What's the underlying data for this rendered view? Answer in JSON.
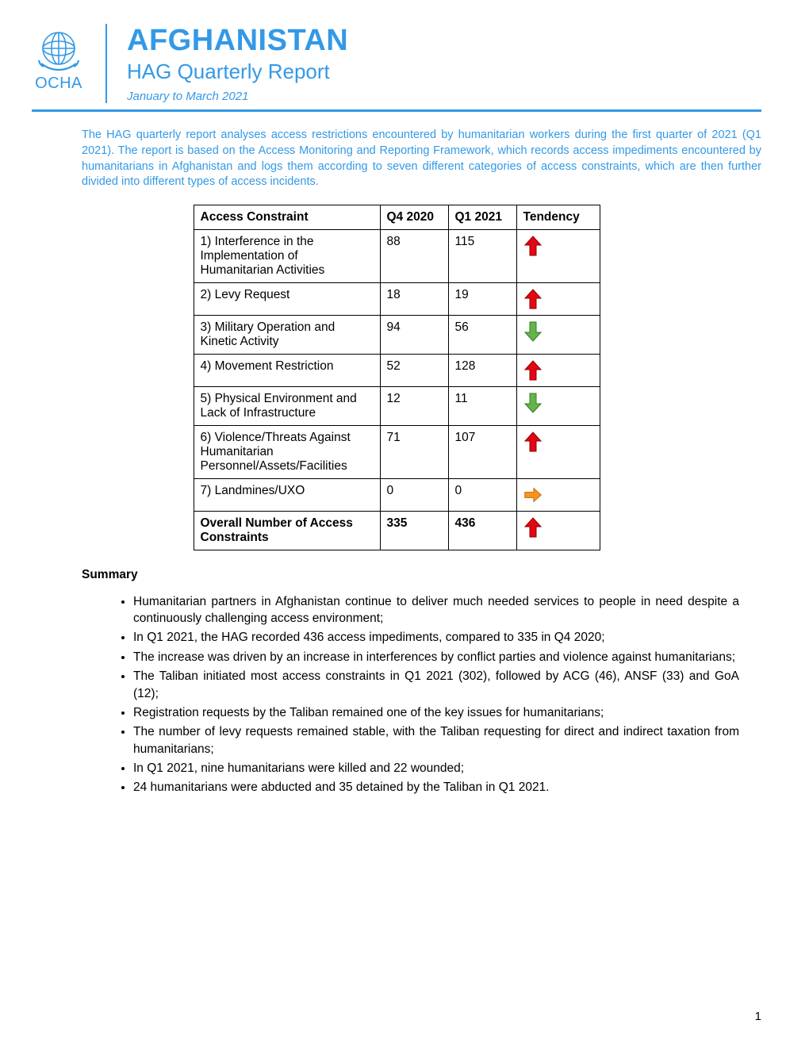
{
  "colors": {
    "primary": "#3399e6",
    "arrow_up": "#e30613",
    "arrow_up_border": "#8b0000",
    "arrow_down": "#66b34d",
    "arrow_down_border": "#2e7d1f",
    "arrow_side": "#f7931e",
    "arrow_side_border": "#c1620a",
    "text": "#000000",
    "bg": "#ffffff",
    "table_border": "#000000"
  },
  "header": {
    "org_label": "OCHA",
    "title": "AFGHANISTAN",
    "subtitle": "HAG Quarterly Report",
    "date_range": "January to March 2021"
  },
  "intro": "The HAG quarterly report analyses access restrictions encountered by humanitarian workers during the first quarter of 2021 (Q1 2021). The report is based on the Access Monitoring and Reporting Framework, which records access impediments encountered by humanitarians in Afghanistan and logs them according to seven different categories of access constraints, which are then further divided into different types of access incidents.",
  "table": {
    "columns": [
      "Access Constraint",
      "Q4 2020",
      "Q1 2021",
      "Tendency"
    ],
    "rows": [
      {
        "label": "1) Interference in the Implementation of Humanitarian Activities",
        "q4": "88",
        "q1": "115",
        "tend": "up"
      },
      {
        "label": "2) Levy Request",
        "q4": "18",
        "q1": "19",
        "tend": "up"
      },
      {
        "label": "3) Military Operation and Kinetic Activity",
        "q4": "94",
        "q1": "56",
        "tend": "down"
      },
      {
        "label": "4) Movement Restriction",
        "q4": "52",
        "q1": "128",
        "tend": "up"
      },
      {
        "label": "5) Physical Environment and Lack of Infrastructure",
        "q4": "12",
        "q1": "11",
        "tend": "down"
      },
      {
        "label": "6) Violence/Threats Against Humanitarian Personnel/Assets/Facilities",
        "q4": "71",
        "q1": "107",
        "tend": "up"
      },
      {
        "label": "7) Landmines/UXO",
        "q4": "0",
        "q1": "0",
        "tend": "side"
      }
    ],
    "total": {
      "label": "Overall Number of Access Constraints",
      "q4": "335",
      "q1": "436",
      "tend": "up"
    }
  },
  "summary": {
    "heading": "Summary",
    "bullets": [
      "Humanitarian partners in Afghanistan continue to deliver much needed services to people in need despite a continuously challenging access environment;",
      "In Q1 2021, the HAG recorded 436 access impediments, compared to 335 in Q4 2020;",
      "The increase was driven by an increase in interferences by conflict parties and violence against humanitarians;",
      "The Taliban initiated most access constraints in Q1 2021 (302), followed by ACG (46), ANSF (33) and GoA (12);",
      "Registration requests by the Taliban remained one of the key issues for humanitarians;",
      "The number of levy requests remained stable, with the Taliban requesting for direct and indirect taxation from humanitarians;",
      "In Q1 2021, nine humanitarians were killed and 22 wounded;",
      "24 humanitarians were abducted and 35 detained by the Taliban in Q1 2021."
    ]
  },
  "page_number": "1"
}
